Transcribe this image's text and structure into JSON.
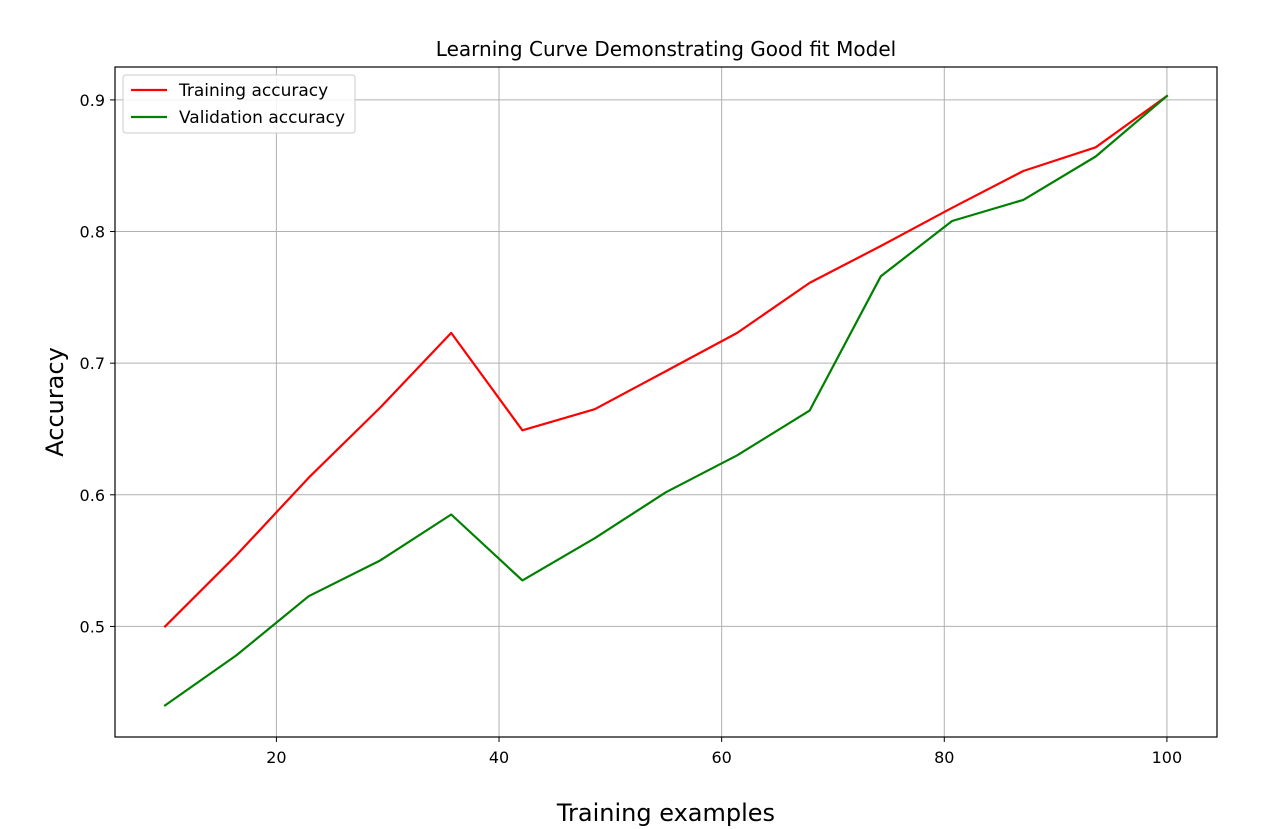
{
  "chart_data": {
    "type": "line",
    "title": "Learning Curve Demonstrating Good fit Model",
    "xlabel": "Training examples",
    "ylabel": "Accuracy",
    "x": [
      10,
      16.4,
      22.9,
      29.3,
      35.7,
      42.1,
      48.6,
      55.0,
      61.4,
      67.9,
      74.3,
      80.7,
      87.1,
      93.6,
      100
    ],
    "xlim": [
      5.5,
      104.5
    ],
    "ylim": [
      0.416,
      0.925
    ],
    "xticks": [
      20,
      40,
      60,
      80,
      100
    ],
    "yticks": [
      0.5,
      0.6,
      0.7,
      0.8,
      0.9
    ],
    "xtick_labels": [
      "20",
      "40",
      "60",
      "80",
      "100"
    ],
    "ytick_labels": [
      "0.5",
      "0.6",
      "0.7",
      "0.8",
      "0.9"
    ],
    "grid": true,
    "legend_position": "upper-left",
    "series": [
      {
        "name": "Training accuracy",
        "color": "#ff0000",
        "values": [
          0.5,
          0.554,
          0.613,
          0.666,
          0.723,
          0.649,
          0.665,
          0.694,
          0.723,
          0.761,
          0.789,
          0.818,
          0.846,
          0.864,
          0.903
        ]
      },
      {
        "name": "Validation accuracy",
        "color": "#008000",
        "values": [
          0.44,
          0.478,
          0.523,
          0.55,
          0.585,
          0.535,
          0.567,
          0.602,
          0.63,
          0.664,
          0.766,
          0.808,
          0.824,
          0.857,
          0.903
        ]
      }
    ]
  }
}
